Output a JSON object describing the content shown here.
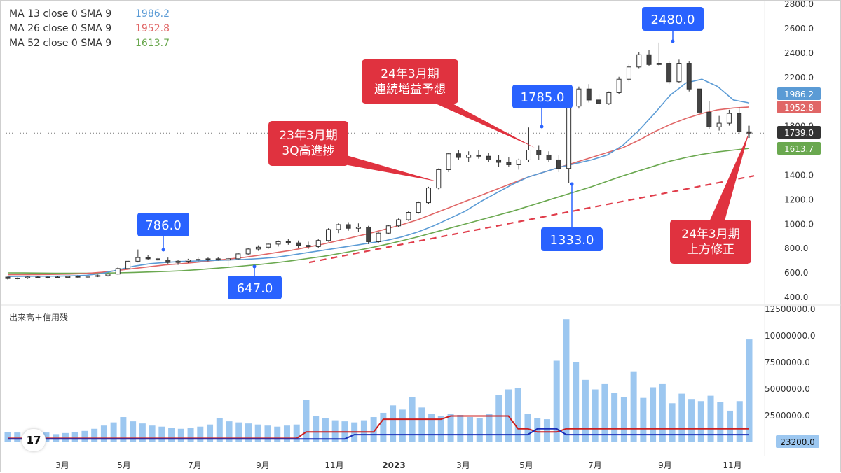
{
  "legend": [
    {
      "label": "MA 13 close 0 SMA 9",
      "value": "1986.2",
      "color": "#5b9bd5"
    },
    {
      "label": "MA 26 close 0 SMA 9",
      "value": "1952.8",
      "color": "#e06666"
    },
    {
      "label": "MA 52 close 0 SMA 9",
      "value": "1613.7",
      "color": "#6aa84f"
    }
  ],
  "volume_title": "出来高＋信用残",
  "tv_logo": "17",
  "callouts": {
    "high_2480": "2480.0",
    "high_1785": "1785.0",
    "high_786": "786.0",
    "low_647": "647.0",
    "low_1333": "1333.0",
    "note_24_3_line1": "24年3月期",
    "note_24_3_line2": "連続増益予想",
    "note_23_3_line1": "23年3月期",
    "note_23_3_line2": "3Q高進捗",
    "note_up_line1": "24年3月期",
    "note_up_line2": "上方修正"
  },
  "price_axis": {
    "ticks": [
      "2800.0",
      "2600.0",
      "2400.0",
      "2200.0",
      "1800.0",
      "1400.0",
      "1200.0",
      "1000.0",
      "800.0",
      "600.0",
      "400.0"
    ],
    "labels": {
      "ma13": "1986.2",
      "ma26": "1952.8",
      "last": "1739.0",
      "ma52": "1613.7"
    }
  },
  "volume_axis": {
    "ticks": [
      "12500000.0",
      "10000000.0",
      "7500000.0",
      "5000000.0",
      "2500000.0"
    ],
    "last": "23200.0"
  },
  "x_axis": [
    "3月",
    "5月",
    "7月",
    "9月",
    "11月",
    "2023",
    "3月",
    "5月",
    "7月",
    "9月",
    "11月"
  ],
  "colors": {
    "up": "#ffffff",
    "down": "#444444",
    "ma13": "#5b9bd5",
    "ma26": "#e06666",
    "ma52": "#6aa84f",
    "trend": "#e03c4a",
    "callout_red": "#e0323f",
    "callout_blue": "#2962ff",
    "volume": "#9cc7f0",
    "credit_buy": "#cc1f1f",
    "credit_sell": "#1a2fb8"
  },
  "chart_data": {
    "type": "candlestick",
    "y_range": [
      400,
      2800
    ],
    "volume_range": [
      0,
      12500000
    ],
    "candles": [
      [
        560,
        565,
        540,
        548
      ],
      [
        548,
        560,
        540,
        552
      ],
      [
        552,
        565,
        545,
        560
      ],
      [
        560,
        570,
        550,
        555
      ],
      [
        555,
        565,
        548,
        560
      ],
      [
        560,
        568,
        552,
        557
      ],
      [
        557,
        570,
        550,
        565
      ],
      [
        565,
        575,
        555,
        560
      ],
      [
        560,
        572,
        552,
        568
      ],
      [
        568,
        580,
        560,
        572
      ],
      [
        572,
        590,
        565,
        585
      ],
      [
        585,
        640,
        580,
        630
      ],
      [
        630,
        700,
        625,
        690
      ],
      [
        690,
        786,
        680,
        720
      ],
      [
        720,
        740,
        700,
        710
      ],
      [
        710,
        730,
        690,
        700
      ],
      [
        700,
        720,
        670,
        680
      ],
      [
        680,
        700,
        660,
        690
      ],
      [
        690,
        710,
        675,
        700
      ],
      [
        700,
        720,
        680,
        705
      ],
      [
        705,
        720,
        690,
        710
      ],
      [
        710,
        725,
        695,
        700
      ],
      [
        700,
        720,
        647,
        710
      ],
      [
        710,
        760,
        700,
        750
      ],
      [
        750,
        800,
        740,
        790
      ],
      [
        790,
        820,
        775,
        805
      ],
      [
        805,
        840,
        790,
        830
      ],
      [
        830,
        860,
        810,
        850
      ],
      [
        850,
        870,
        825,
        840
      ],
      [
        840,
        860,
        800,
        820
      ],
      [
        820,
        850,
        790,
        810
      ],
      [
        810,
        870,
        800,
        860
      ],
      [
        860,
        960,
        850,
        950
      ],
      [
        950,
        1000,
        920,
        990
      ],
      [
        990,
        1010,
        940,
        960
      ],
      [
        960,
        1000,
        930,
        970
      ],
      [
        970,
        980,
        830,
        850
      ],
      [
        850,
        930,
        840,
        920
      ],
      [
        920,
        990,
        910,
        980
      ],
      [
        980,
        1040,
        970,
        1030
      ],
      [
        1030,
        1100,
        1020,
        1090
      ],
      [
        1090,
        1180,
        1080,
        1170
      ],
      [
        1170,
        1300,
        1160,
        1290
      ],
      [
        1290,
        1450,
        1280,
        1440
      ],
      [
        1440,
        1580,
        1420,
        1570
      ],
      [
        1570,
        1600,
        1520,
        1540
      ],
      [
        1540,
        1590,
        1500,
        1560
      ],
      [
        1560,
        1600,
        1530,
        1550
      ],
      [
        1550,
        1580,
        1500,
        1520
      ],
      [
        1520,
        1560,
        1460,
        1500
      ],
      [
        1500,
        1540,
        1460,
        1480
      ],
      [
        1480,
        1530,
        1440,
        1520
      ],
      [
        1520,
        1785,
        1500,
        1600
      ],
      [
        1600,
        1640,
        1520,
        1560
      ],
      [
        1560,
        1590,
        1500,
        1520
      ],
      [
        1520,
        1560,
        1420,
        1450
      ],
      [
        1450,
        1980,
        1333,
        1960
      ],
      [
        1960,
        2120,
        1940,
        2100
      ],
      [
        2100,
        2140,
        1990,
        2010
      ],
      [
        2010,
        2060,
        1960,
        1980
      ],
      [
        1980,
        2080,
        1970,
        2070
      ],
      [
        2070,
        2200,
        2060,
        2180
      ],
      [
        2180,
        2300,
        2160,
        2280
      ],
      [
        2280,
        2400,
        2270,
        2380
      ],
      [
        2380,
        2420,
        2290,
        2300
      ],
      [
        2300,
        2480,
        2290,
        2310
      ],
      [
        2310,
        2330,
        2140,
        2160
      ],
      [
        2160,
        2340,
        2150,
        2310
      ],
      [
        2310,
        2330,
        2080,
        2100
      ],
      [
        2100,
        2200,
        1900,
        1910
      ],
      [
        1910,
        2000,
        1770,
        1790
      ],
      [
        1790,
        1880,
        1760,
        1820
      ],
      [
        1820,
        1930,
        1800,
        1900
      ],
      [
        1900,
        1950,
        1730,
        1750
      ],
      [
        1750,
        1800,
        1700,
        1739
      ]
    ],
    "ma13": [
      565,
      566,
      567,
      568,
      570,
      575,
      590,
      620,
      650,
      670,
      680,
      688,
      692,
      696,
      700,
      705,
      712,
      722,
      740,
      760,
      780,
      800,
      820,
      840,
      860,
      890,
      930,
      980,
      1040,
      1100,
      1180,
      1250,
      1320,
      1380,
      1420,
      1460,
      1490,
      1520,
      1560,
      1640,
      1760,
      1900,
      2050,
      2150,
      2180,
      2120,
      2010,
      1986.2
    ],
    "ma26": [
      580,
      580,
      581,
      583,
      585,
      590,
      600,
      615,
      630,
      645,
      660,
      670,
      682,
      695,
      708,
      722,
      740,
      760,
      780,
      805,
      830,
      860,
      890,
      920,
      955,
      990,
      1030,
      1080,
      1130,
      1180,
      1230,
      1280,
      1330,
      1380,
      1420,
      1460,
      1500,
      1540,
      1580,
      1620,
      1680,
      1750,
      1810,
      1860,
      1900,
      1930,
      1945,
      1952.8
    ],
    "ma52": [
      595,
      594,
      593,
      592,
      592,
      592,
      593,
      595,
      598,
      602,
      606,
      612,
      620,
      630,
      640,
      652,
      664,
      678,
      694,
      712,
      730,
      752,
      775,
      800,
      828,
      858,
      890,
      925,
      960,
      995,
      1030,
      1065,
      1100,
      1140,
      1180,
      1220,
      1260,
      1300,
      1345,
      1390,
      1430,
      1470,
      1510,
      1540,
      1565,
      1585,
      1600,
      1613.7
    ],
    "volume": [
      900000,
      850000,
      800000,
      900000,
      850000,
      700000,
      800000,
      900000,
      1000000,
      1200000,
      1500000,
      1800000,
      2300000,
      1900000,
      1700000,
      1500000,
      1400000,
      1300000,
      1200000,
      1300000,
      1400000,
      1600000,
      2200000,
      1900000,
      1800000,
      1700000,
      1600000,
      1500000,
      1400000,
      1500000,
      1600000,
      3900000,
      2400000,
      2200000,
      2000000,
      1900000,
      1800000,
      2000000,
      2300000,
      2700000,
      3400000,
      3000000,
      4200000,
      3200000,
      2600000,
      2400000,
      2600000,
      2500000,
      2300000,
      2200000,
      2600000,
      4400000,
      4900000,
      5000000,
      2600000,
      2200000,
      2100000,
      7600000,
      11500000,
      7500000,
      5800000,
      4900000,
      5400000,
      4600000,
      4200000,
      6600000,
      4100000,
      5100000,
      5400000,
      3600000,
      4500000,
      4000000,
      3800000,
      4300000,
      3700000,
      2900000,
      3800000,
      9600000
    ]
  }
}
